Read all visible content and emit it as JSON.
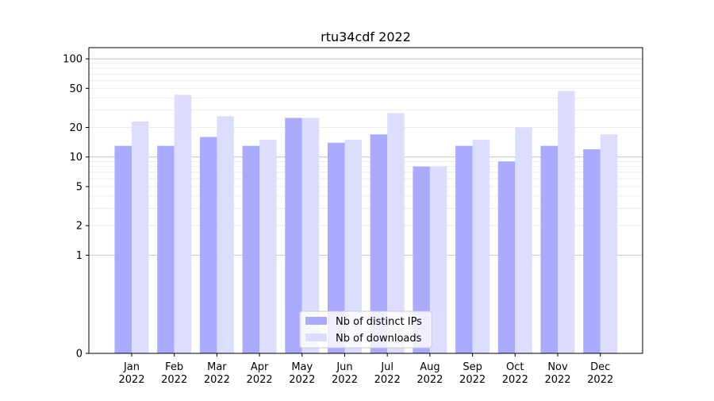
{
  "chart_data": {
    "type": "bar",
    "title": "rtu34cdf 2022",
    "xlabel": "",
    "ylabel": "",
    "y_scale": "symlog",
    "ylim": [
      0,
      130
    ],
    "y_ticks": [
      0,
      1,
      2,
      5,
      10,
      20,
      50,
      100
    ],
    "y_tick_labels": [
      "0",
      "1",
      "2",
      "5",
      "10",
      "20",
      "50",
      "100"
    ],
    "grid": true,
    "legend_position": "lower center",
    "categories": [
      [
        "Jan",
        "2022"
      ],
      [
        "Feb",
        "2022"
      ],
      [
        "Mar",
        "2022"
      ],
      [
        "Apr",
        "2022"
      ],
      [
        "May",
        "2022"
      ],
      [
        "Jun",
        "2022"
      ],
      [
        "Jul",
        "2022"
      ],
      [
        "Aug",
        "2022"
      ],
      [
        "Sep",
        "2022"
      ],
      [
        "Oct",
        "2022"
      ],
      [
        "Nov",
        "2022"
      ],
      [
        "Dec",
        "2022"
      ]
    ],
    "series": [
      {
        "name": "Nb of distinct IPs",
        "color": "#aaaaff",
        "values": [
          13,
          13,
          16,
          13,
          25,
          14,
          17,
          8,
          13,
          9,
          13,
          12
        ]
      },
      {
        "name": "Nb of downloads",
        "color": "#ddddff",
        "values": [
          23,
          43,
          26,
          15,
          25,
          15,
          28,
          8,
          15,
          20,
          47,
          17
        ]
      }
    ]
  }
}
